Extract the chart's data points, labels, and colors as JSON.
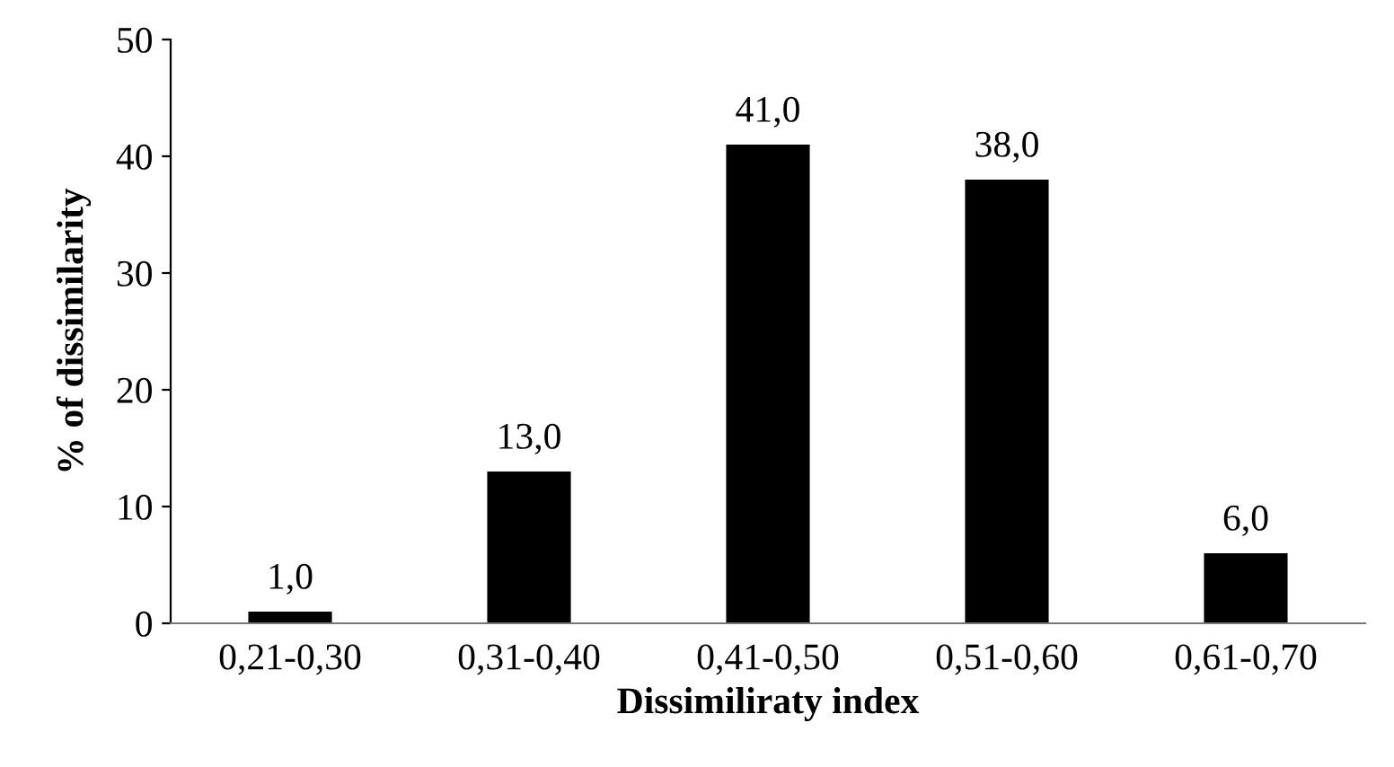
{
  "chart_data": {
    "type": "bar",
    "xlabel": "Dissimiliraty index",
    "ylabel": "% of dissimilarity",
    "categories": [
      "0,21-0,30",
      "0,31-0,40",
      "0,41-0,50",
      "0,51-0,60",
      "0,61-0,70"
    ],
    "values": [
      1.0,
      13.0,
      41.0,
      38.0,
      6.0
    ],
    "value_labels": [
      "1,0",
      "13,0",
      "41,0",
      "38,0",
      "6,0"
    ],
    "color": "#000000",
    "ylim": [
      0,
      50
    ],
    "yticks": [
      0,
      10,
      20,
      30,
      40,
      50
    ],
    "grid": false
  }
}
